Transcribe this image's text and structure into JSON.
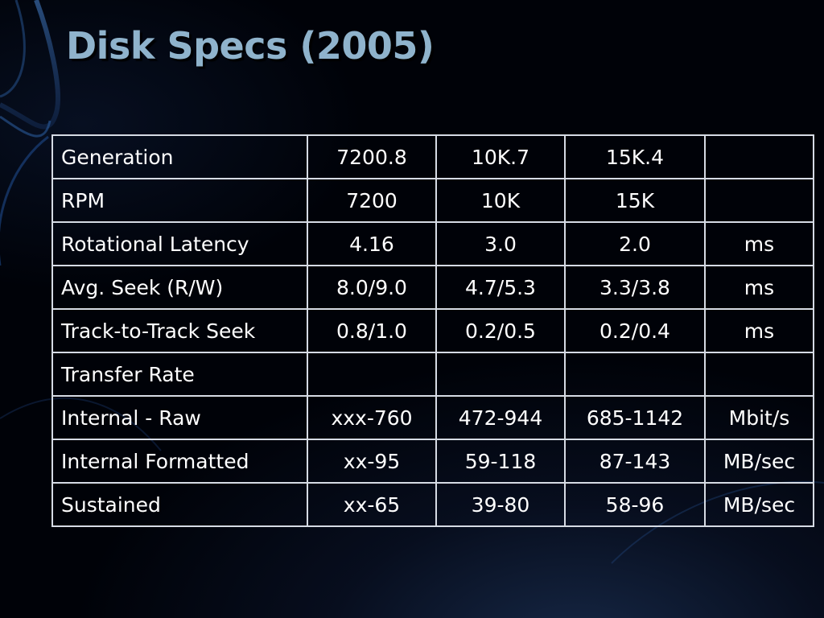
{
  "slide": {
    "title": "Disk Specs (2005)"
  },
  "table": {
    "rows": [
      {
        "label": "Generation",
        "values": [
          "7200.8",
          "10K.7",
          "15K.4"
        ],
        "unit": ""
      },
      {
        "label": "RPM",
        "values": [
          "7200",
          "10K",
          "15K"
        ],
        "unit": ""
      },
      {
        "label": "Rotational Latency",
        "values": [
          "4.16",
          "3.0",
          "2.0"
        ],
        "unit": "ms"
      },
      {
        "label": "Avg. Seek (R/W)",
        "values": [
          "8.0/9.0",
          "4.7/5.3",
          "3.3/3.8"
        ],
        "unit": "ms"
      },
      {
        "label": "Track-to-Track Seek",
        "values": [
          "0.8/1.0",
          "0.2/0.5",
          "0.2/0.4"
        ],
        "unit": "ms"
      },
      {
        "label": "Transfer Rate",
        "values": [
          "",
          "",
          ""
        ],
        "unit": ""
      },
      {
        "label": "Internal - Raw",
        "values": [
          "xxx-760",
          "472-944",
          "685-1142"
        ],
        "unit": "Mbit/s"
      },
      {
        "label": "Internal Formatted",
        "values": [
          "xx-95",
          "59-118",
          "87-143"
        ],
        "unit": "MB/sec"
      },
      {
        "label": "Sustained",
        "values": [
          "xx-65",
          "39-80",
          "58-96"
        ],
        "unit": "MB/sec"
      }
    ]
  },
  "colors": {
    "title": "#8fb3cc",
    "text": "#ffffff",
    "grid": "#d6dbe4",
    "background": "#000208"
  }
}
